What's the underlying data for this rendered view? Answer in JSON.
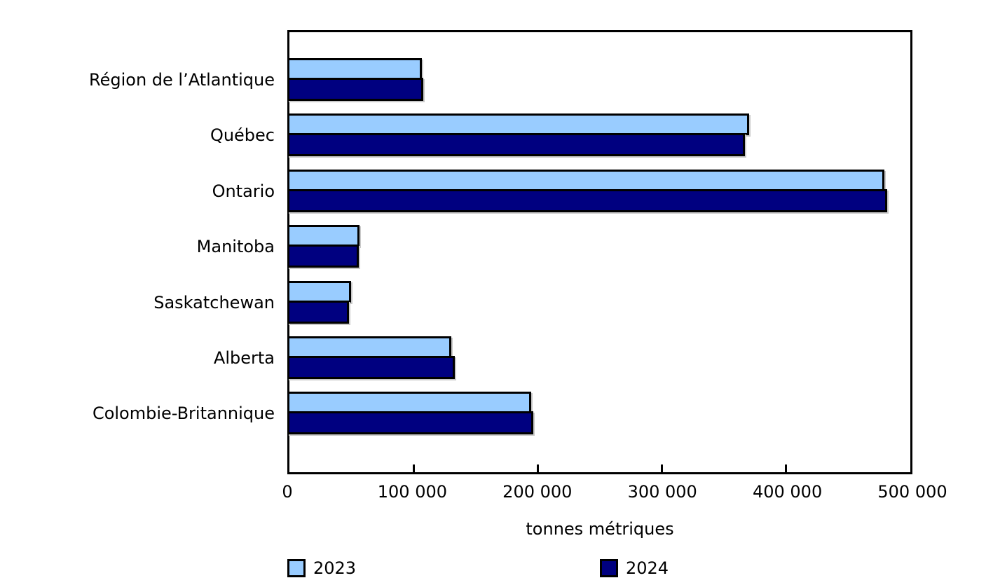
{
  "chart_data": {
    "type": "bar",
    "orientation": "horizontal",
    "title": "",
    "xlabel": "tonnes métriques",
    "ylabel": "",
    "xlim": [
      0,
      500000
    ],
    "xticks": [
      0,
      100000,
      200000,
      300000,
      400000,
      500000
    ],
    "xtick_labels": [
      "0",
      "100 000",
      "200 000",
      "300 000",
      "400 000",
      "500 000"
    ],
    "categories": [
      "Région de l’Atlantique",
      "Québec",
      "Ontario",
      "Manitoba",
      "Saskatchewan",
      "Alberta",
      "Colombie-Britannique"
    ],
    "series": [
      {
        "name": "2023",
        "color": "#99CCFF",
        "values": [
          107500,
          369500,
          477500,
          57500,
          51000,
          131000,
          195000
        ]
      },
      {
        "name": "2024",
        "color": "#000080",
        "values": [
          108500,
          366000,
          480000,
          57000,
          49500,
          134000,
          197000
        ]
      }
    ],
    "legend_position": "bottom",
    "grid": false,
    "bar_border_color": "#000000",
    "background_color": "#FFFFFF",
    "text_color": "#000000"
  }
}
